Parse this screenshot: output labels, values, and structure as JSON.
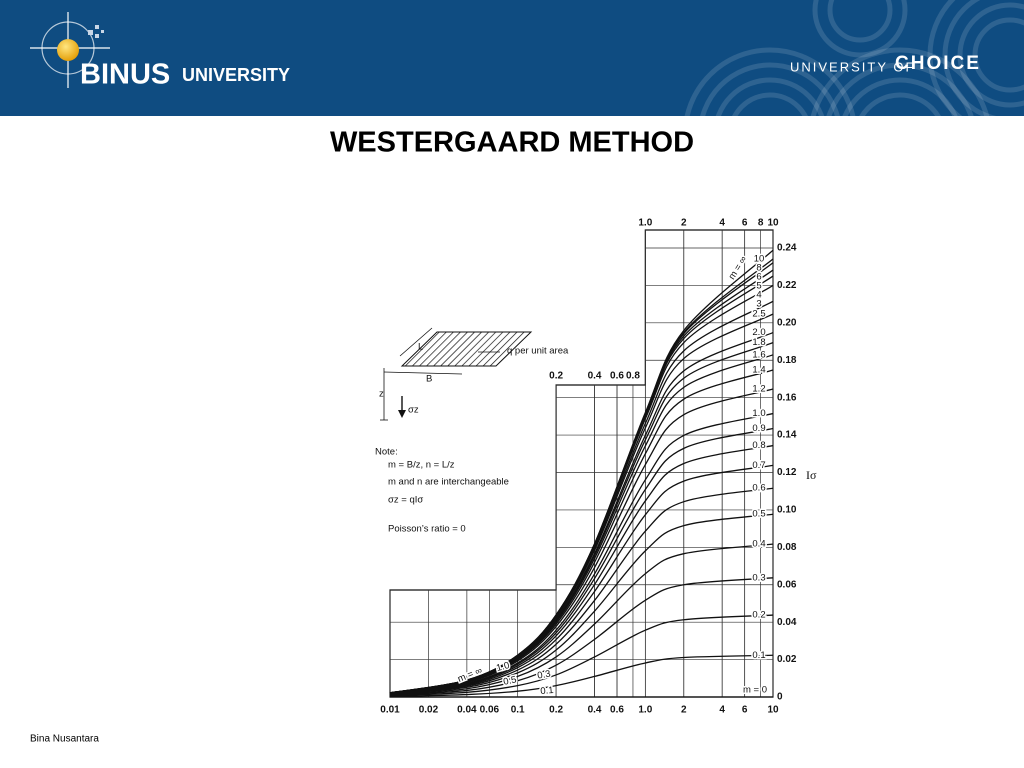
{
  "header": {
    "logo_name": "BINUS",
    "logo_sub": "UNIVERSITY",
    "tagline_pre": "UNIVERSITY OF",
    "tagline_bold": "CHOICE"
  },
  "footer": "Bina Nusantara",
  "chart_data": {
    "type": "line",
    "title": "WESTERGAARD METHOD",
    "y_label": "Iσ",
    "xscale": "log",
    "color": "#111111",
    "grid": true,
    "xlim": [
      0.01,
      10
    ],
    "ylim": [
      0,
      0.24
    ],
    "xticks": [
      0.01,
      0.02,
      0.04,
      0.06,
      0.1,
      0.2,
      0.4,
      0.6,
      {
        "value": 1,
        "label": "1.0"
      },
      2,
      4,
      6,
      10
    ],
    "xticks_mid": [
      0.2,
      0.4,
      0.6,
      0.8
    ],
    "xticks_top": [
      {
        "value": 1,
        "label": "1.0"
      },
      2,
      4,
      6,
      8,
      10
    ],
    "yticks": [
      0,
      0.02,
      0.04,
      0.06,
      0.08,
      {
        "value": 0.1,
        "label": "0.10"
      },
      0.12,
      0.14,
      0.16,
      0.18,
      {
        "value": 0.2,
        "label": "0.20"
      },
      0.22,
      0.24
    ],
    "x": [
      0.01,
      0.04,
      0.1,
      0.2,
      0.4,
      1,
      2,
      10
    ],
    "series": [
      {
        "name": "m = ∞",
        "values": [
          0.0023,
          0.009,
          0.0224,
          0.0439,
          0.0819,
          0.152,
          0.1959,
          0.2388
        ]
      },
      {
        "name": "10",
        "values": [
          0.0022,
          0.009,
          0.0223,
          0.0438,
          0.0817,
          0.1515,
          0.1948,
          0.2341
        ]
      },
      {
        "name": "8",
        "values": [
          0.0022,
          0.009,
          0.0223,
          0.0437,
          0.0816,
          0.1512,
          0.1942,
          0.2321
        ]
      },
      {
        "name": "6",
        "values": [
          0.0022,
          0.0089,
          0.0222,
          0.0436,
          0.0813,
          0.1505,
          0.1929,
          0.2282
        ]
      },
      {
        "name": "5",
        "values": [
          0.0022,
          0.0089,
          0.0221,
          0.0434,
          0.081,
          0.1499,
          0.1916,
          0.225
        ]
      },
      {
        "name": "4",
        "values": [
          0.0022,
          0.0089,
          0.022,
          0.0432,
          0.0805,
          0.1487,
          0.1894,
          0.22
        ]
      },
      {
        "name": "3",
        "values": [
          0.0022,
          0.0088,
          0.0218,
          0.0427,
          0.0794,
          0.1462,
          0.185,
          0.2115
        ]
      },
      {
        "name": "2.5",
        "values": [
          0.0022,
          0.0087,
          0.0215,
          0.0422,
          0.0784,
          0.1438,
          0.1809,
          0.2047
        ]
      },
      {
        "name": "2.0",
        "values": [
          0.0021,
          0.0085,
          0.0211,
          0.0413,
          0.0766,
          0.1398,
          0.1743,
          0.1948
        ]
      },
      {
        "name": "1.8",
        "values": [
          0.0021,
          0.0084,
          0.0208,
          0.0407,
          0.0755,
          0.1374,
          0.1704,
          0.1894
        ]
      },
      {
        "name": "1.6",
        "values": [
          0.0021,
          0.0082,
          0.0204,
          0.04,
          0.074,
          0.1342,
          0.1655,
          0.1829
        ]
      },
      {
        "name": "1.4",
        "values": [
          0.002,
          0.008,
          0.02,
          0.039,
          0.072,
          0.13,
          0.1592,
          0.1748
        ]
      },
      {
        "name": "1.2",
        "values": [
          0.0019,
          0.0078,
          0.0193,
          0.0377,
          0.0692,
          0.1242,
          0.1509,
          0.1646
        ]
      },
      {
        "name": "1.0",
        "values": [
          0.0018,
          0.0073,
          0.0182,
          0.0357,
          0.0658,
          0.1161,
          0.1398,
          0.1515
        ]
      },
      {
        "name": "0.9",
        "values": [
          0.0018,
          0.0071,
          0.0176,
          0.0343,
          0.0633,
          0.1109,
          0.1329,
          0.1435
        ]
      },
      {
        "name": "0.8",
        "values": [
          0.0017,
          0.0067,
          0.0167,
          0.0327,
          0.0601,
          0.1048,
          0.1248,
          0.1344
        ]
      },
      {
        "name": "0.7",
        "values": [
          0.0016,
          0.0063,
          0.0157,
          0.0307,
          0.0564,
          0.0974,
          0.1154,
          0.1238
        ]
      },
      {
        "name": "0.6",
        "values": [
          0.0015,
          0.0058,
          0.0144,
          0.0282,
          0.0516,
          0.0886,
          0.1044,
          0.1116
        ]
      },
      {
        "name": "0.5",
        "values": [
          0.0013,
          0.0052,
          0.0129,
          0.0251,
          0.0459,
          0.0781,
          0.0916,
          0.0977
        ]
      },
      {
        "name": "0.4",
        "values": [
          0.0011,
          0.0044,
          0.011,
          0.0214,
          0.039,
          0.0659,
          0.0766,
          0.0817
        ]
      },
      {
        "name": "0.3",
        "values": [
          0.0009,
          0.0035,
          0.0087,
          0.017,
          0.0308,
          0.0517,
          0.06,
          0.0637
        ]
      },
      {
        "name": "0.2",
        "values": [
          0.0006,
          0.0025,
          0.0061,
          0.0118,
          0.0214,
          0.0357,
          0.0413,
          0.0438
        ]
      },
      {
        "name": "0.1",
        "values": [
          0.0003,
          0.0013,
          0.0031,
          0.0061,
          0.011,
          0.0182,
          0.0211,
          0.0223
        ]
      },
      {
        "name": "m = 0",
        "values": [
          0,
          0,
          0,
          0,
          0,
          0,
          0,
          0
        ]
      }
    ],
    "annotations": [
      "L",
      "B",
      "q per unit area",
      "z",
      "σz",
      "Note:",
      "m = B/z, n = L/z",
      "m and n are interchangeable",
      "σz = qIσ",
      "Poisson’s ratio = 0"
    ]
  }
}
